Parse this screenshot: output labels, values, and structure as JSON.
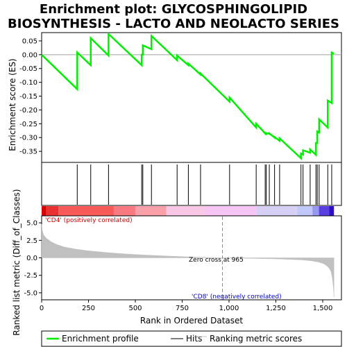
{
  "chart_data": {
    "type": "line",
    "title_line1": "Enrichment plot: GLYCOSPHINGOLIPID",
    "title_line2": "BIOSYNTHESIS - LACTO AND NEOLACTO SERIES",
    "es_panel": {
      "ylabel": "Enrichment score (ES)",
      "ylim": [
        -0.39,
        0.08
      ],
      "yticks": [
        0.05,
        0.0,
        -0.05,
        -0.1,
        -0.15,
        -0.2,
        -0.25,
        -0.3,
        -0.35
      ],
      "ytick_labels": [
        "0.05",
        "0.00",
        "-0.05",
        "-0.10",
        "-0.15",
        "-0.20",
        "-0.25",
        "-0.30",
        "-0.35"
      ],
      "line_color": "#00ee00",
      "hit_ranks": [
        0,
        190,
        262,
        357,
        534,
        540,
        586,
        723,
        783,
        848,
        1003,
        1145,
        1193,
        1199,
        1215,
        1243,
        1270,
        1384,
        1395,
        1433,
        1464,
        1471,
        1481,
        1527,
        1548
      ],
      "es_after": [
        0.0,
        0.008,
        0.06,
        0.075,
        0.0,
        0.034,
        0.068,
        -0.003,
        -0.032,
        -0.068,
        -0.155,
        -0.25,
        -0.282,
        -0.284,
        -0.285,
        -0.298,
        -0.303,
        -0.358,
        -0.346,
        -0.343,
        -0.32,
        -0.278,
        -0.234,
        -0.166,
        0.008
      ],
      "es_before": [
        0.0,
        -0.125,
        -0.038,
        -0.003,
        -0.038,
        0.0,
        0.02,
        -0.02,
        -0.038,
        -0.072,
        -0.17,
        -0.264,
        -0.285,
        -0.29,
        -0.287,
        -0.3,
        -0.312,
        -0.375,
        -0.362,
        -0.355,
        -0.363,
        -0.32,
        -0.282,
        -0.264,
        -0.175
      ],
      "final_es": 0.004
    },
    "heat_bar": {
      "colors": [
        "#d90000",
        "#ea3030",
        "#f85a5a",
        "#f97a80",
        "#f9a0a8",
        "#fac8e6",
        "#f6c5f3",
        "#d6d0f4",
        "#c0c8f8",
        "#9898f0",
        "#5a40e0",
        "#2a10c8"
      ],
      "stops": [
        0,
        25,
        90,
        385,
        500,
        665,
        870,
        1145,
        1365,
        1445,
        1480,
        1535,
        1560
      ]
    },
    "metric_panel": {
      "ylabel": "Ranked list metric (Diff_of_Classes)",
      "ylim": [
        -6.0,
        6.0
      ],
      "yticks": [
        5.0,
        2.5,
        0.0,
        -2.5,
        -5.0
      ],
      "ytick_labels": [
        "5.0",
        "2.5",
        "0.0",
        "-2.5",
        "-5.0"
      ],
      "curve_x": [
        0,
        3,
        10,
        25,
        50,
        80,
        120,
        180,
        250,
        350,
        450,
        550,
        650,
        750,
        850,
        965,
        1100,
        1250,
        1380,
        1440,
        1480,
        1505,
        1522,
        1535,
        1545,
        1552,
        1558,
        1560
      ],
      "curve_y": [
        4.8,
        4.0,
        3.3,
        2.8,
        2.3,
        1.9,
        1.55,
        1.25,
        1.0,
        0.75,
        0.55,
        0.4,
        0.28,
        0.17,
        0.07,
        0.0,
        -0.07,
        -0.15,
        -0.28,
        -0.42,
        -0.62,
        -0.85,
        -1.15,
        -1.5,
        -2.0,
        -3.0,
        -4.5,
        -5.6
      ],
      "zero_cross_rank": 965,
      "zero_cross_text": "Zero cross at 965",
      "pos_label": "'CD4' (positively correlated)",
      "neg_label": "'CD8' (negatively correlated)",
      "pos_color": "#cc0000",
      "neg_color": "#0000cc"
    },
    "x_axis": {
      "xlabel": "Rank in Ordered Dataset",
      "xlim": [
        0,
        1600
      ],
      "xticks": [
        0,
        250,
        500,
        750,
        1000,
        1250,
        1500
      ],
      "xtick_labels": [
        "0",
        "250",
        "500",
        "750",
        "1,000",
        "1,250",
        "1,500"
      ],
      "n_genes": 1560
    },
    "legend": {
      "position": "bottom",
      "entries": [
        {
          "label": "Enrichment profile",
          "color": "#00ee00"
        },
        {
          "label": "Hits",
          "color": "#000000"
        },
        {
          "label": "Ranking metric scores",
          "color": "#c0c0c0"
        }
      ]
    }
  }
}
